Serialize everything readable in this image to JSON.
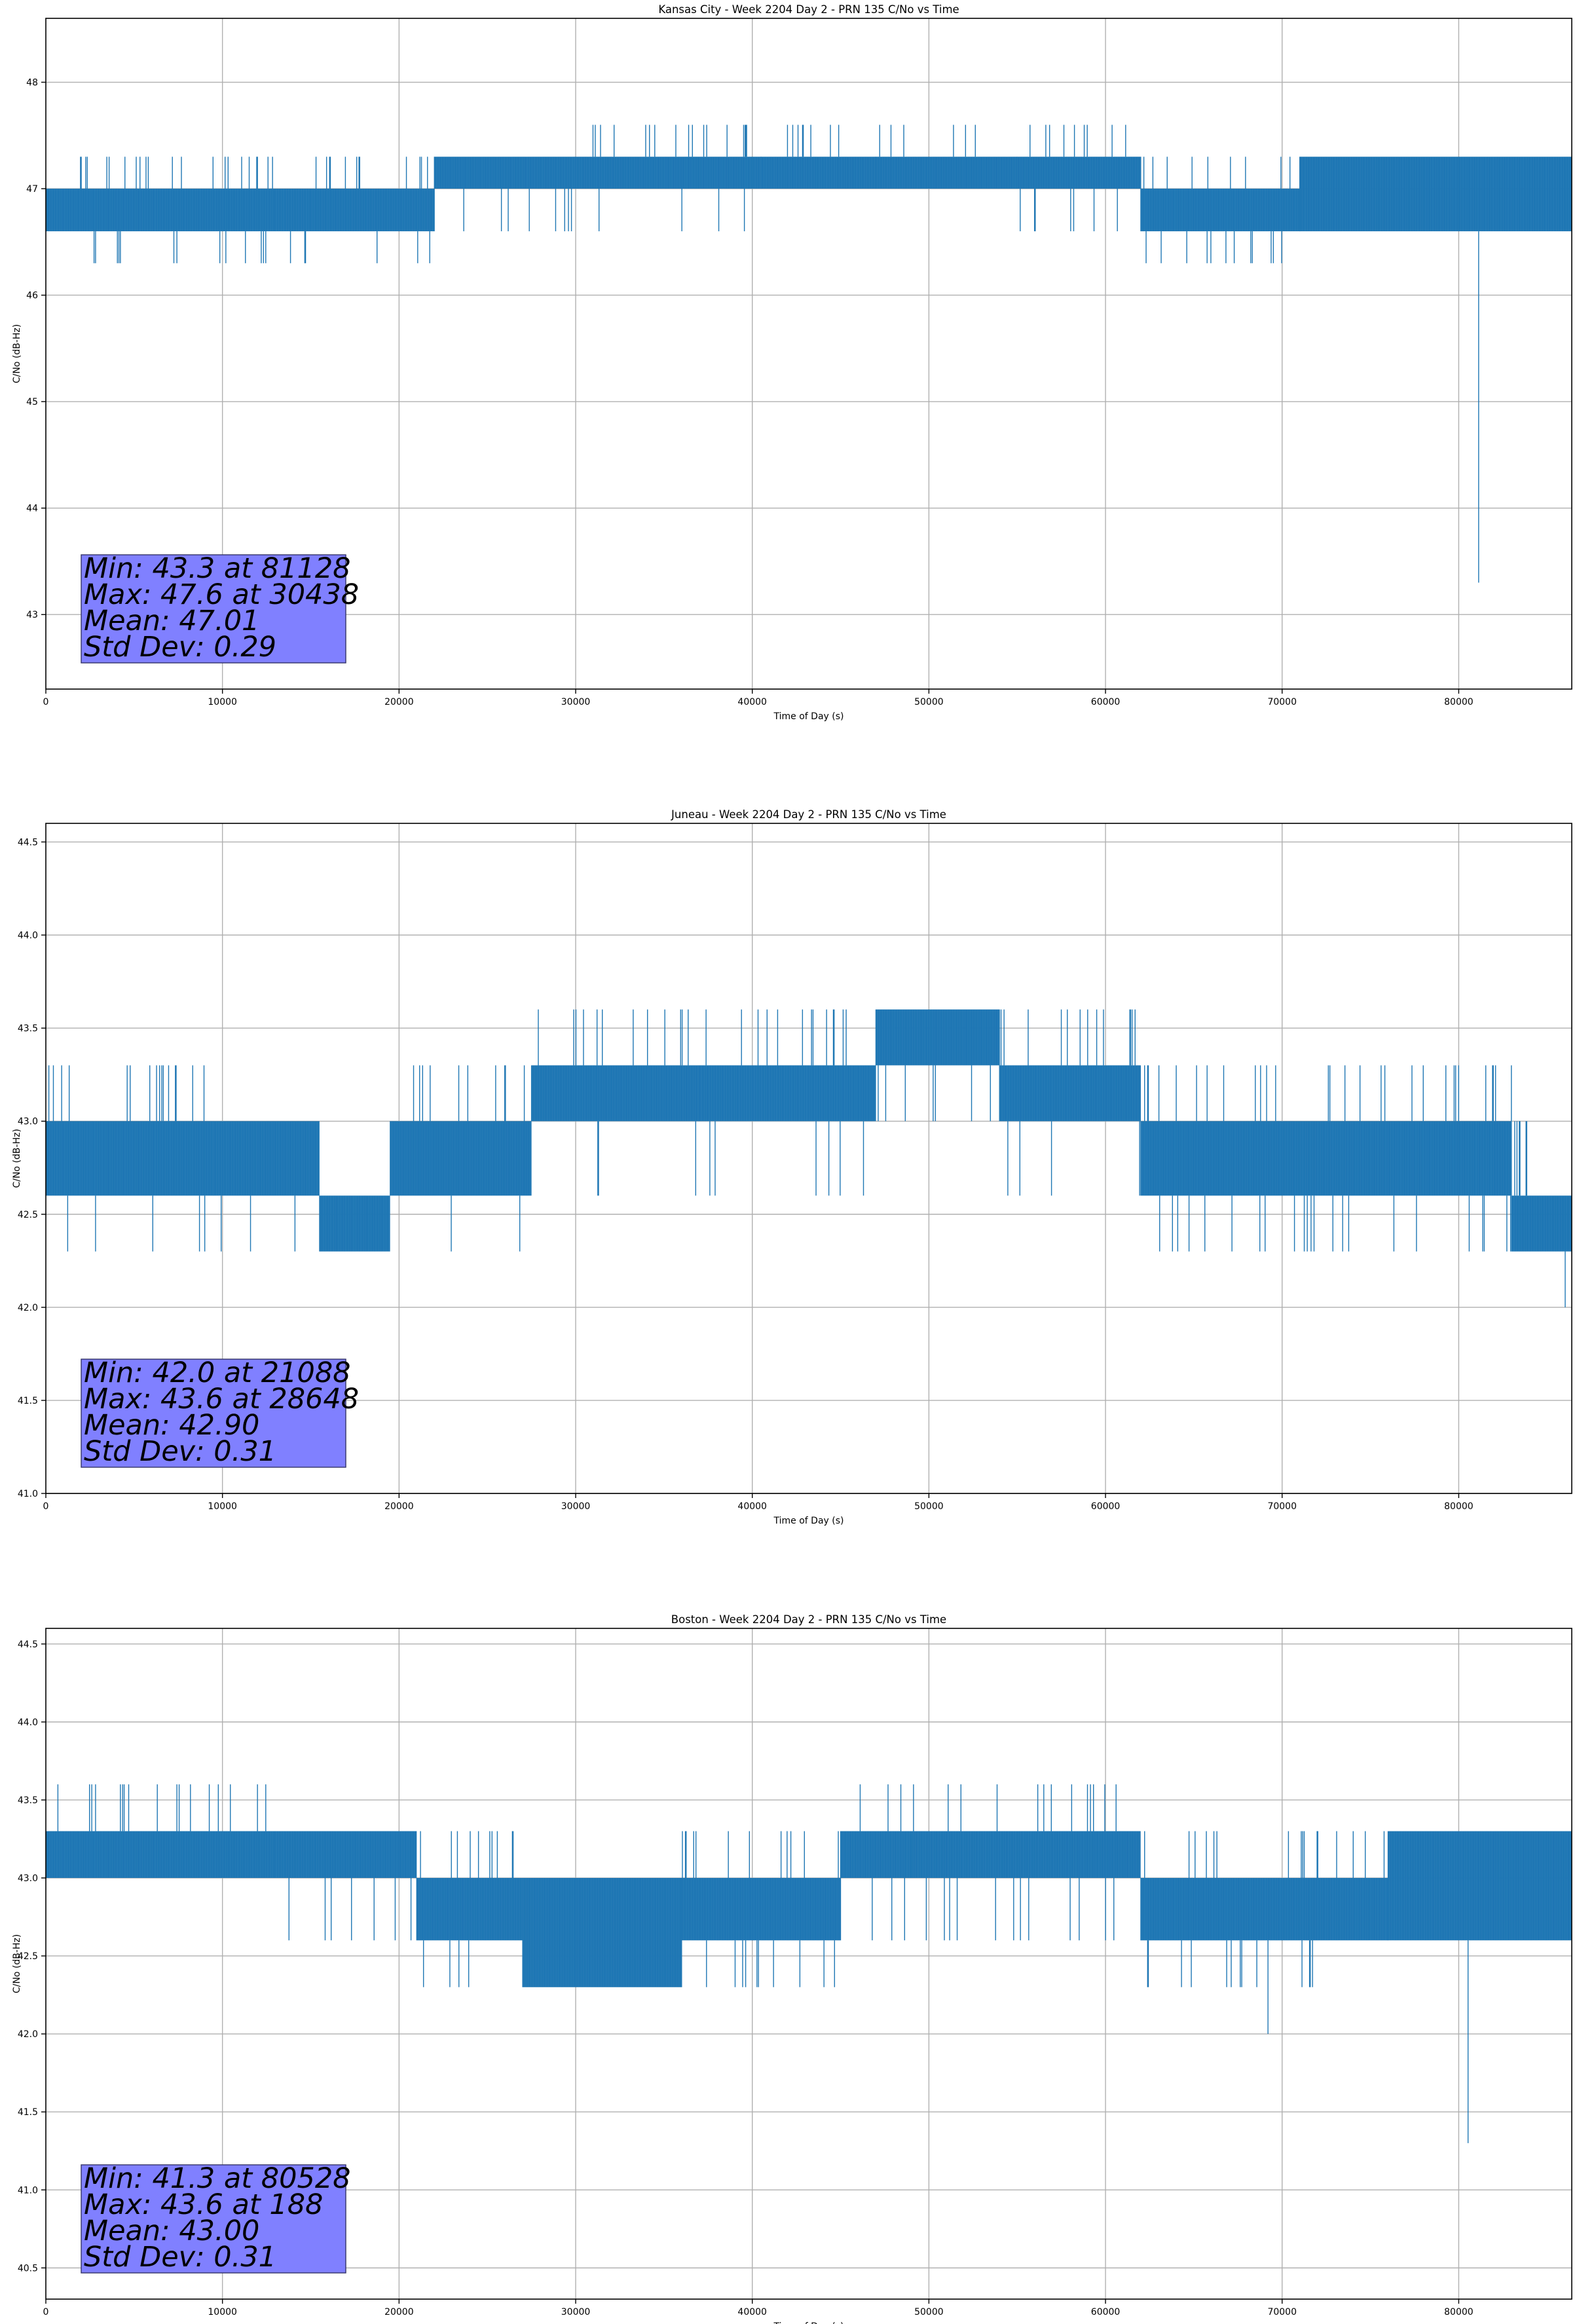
{
  "chart_data": [
    {
      "type": "line",
      "title": "Kansas City - Week 2204 Day 2 - PRN 135 C/No vs Time",
      "xlabel": "Time of Day (s)",
      "ylabel": "C/No (dB-Hz)",
      "xlim": [
        0,
        86400
      ],
      "ylim": [
        42.3,
        48.6
      ],
      "xticks": [
        0,
        10000,
        20000,
        30000,
        40000,
        50000,
        60000,
        70000,
        80000
      ],
      "yticks": [
        43,
        44,
        45,
        46,
        47,
        48
      ],
      "grid": true,
      "color": "#1f77b4",
      "stats": {
        "min_line": "Min: 43.3 at 81128",
        "max_line": "Max: 47.6 at 30438",
        "mean_line": "Mean: 47.01",
        "std_line": "Std Dev: 0.29"
      },
      "segments": [
        {
          "x": [
            0,
            13000
          ],
          "low": 46.6,
          "high": 47.0,
          "dips": 46.3,
          "spikes": 47.3
        },
        {
          "x": [
            13000,
            15000
          ],
          "low": 46.6,
          "high": 47.0,
          "dips": 46.3,
          "spikes": 47.0
        },
        {
          "x": [
            15000,
            22000
          ],
          "low": 46.6,
          "high": 47.0,
          "dips": 46.3,
          "spikes": 47.3
        },
        {
          "x": [
            22000,
            30000
          ],
          "low": 47.0,
          "high": 47.3,
          "dips": 46.6,
          "spikes": 47.3
        },
        {
          "x": [
            30000,
            40500
          ],
          "low": 47.0,
          "high": 47.3,
          "dips": 46.6,
          "spikes": 47.6
        },
        {
          "x": [
            40500,
            47000
          ],
          "low": 47.0,
          "high": 47.3,
          "dips": 47.0,
          "spikes": 47.6
        },
        {
          "x": [
            47000,
            55000
          ],
          "low": 47.0,
          "high": 47.3,
          "dips": 47.0,
          "spikes": 47.6
        },
        {
          "x": [
            55000,
            62000
          ],
          "low": 47.0,
          "high": 47.3,
          "dips": 46.6,
          "spikes": 47.6
        },
        {
          "x": [
            62000,
            71000
          ],
          "low": 46.6,
          "high": 47.0,
          "dips": 46.3,
          "spikes": 47.3
        },
        {
          "x": [
            71000,
            86400
          ],
          "low": 46.6,
          "high": 47.3,
          "dips": 46.6,
          "spikes": 47.3
        }
      ],
      "outliers": [
        {
          "x": 81128,
          "y": 43.3
        }
      ]
    },
    {
      "type": "line",
      "title": "Juneau - Week 2204 Day 2 - PRN 135 C/No vs Time",
      "xlabel": "Time of Day (s)",
      "ylabel": "C/No (dB-Hz)",
      "xlim": [
        0,
        86400
      ],
      "ylim": [
        41.0,
        44.6
      ],
      "xticks": [
        0,
        10000,
        20000,
        30000,
        40000,
        50000,
        60000,
        70000,
        80000
      ],
      "yticks": [
        41.0,
        41.5,
        42.0,
        42.5,
        43.0,
        43.5,
        44.0,
        44.5
      ],
      "grid": true,
      "color": "#1f77b4",
      "stats": {
        "min_line": "Min: 42.0 at 21088",
        "max_line": "Max: 43.6 at 28648",
        "mean_line": "Mean: 42.90",
        "std_line": "Std Dev: 0.31"
      },
      "segments": [
        {
          "x": [
            0,
            9500
          ],
          "low": 42.6,
          "high": 43.0,
          "dips": 42.3,
          "spikes": 43.3
        },
        {
          "x": [
            9500,
            15500
          ],
          "low": 42.6,
          "high": 43.0,
          "dips": 42.3,
          "spikes": 43.0
        },
        {
          "x": [
            15500,
            19500
          ],
          "low": 42.3,
          "high": 42.6,
          "dips": 42.3,
          "spikes": 42.6
        },
        {
          "x": [
            19500,
            27500
          ],
          "low": 42.6,
          "high": 43.0,
          "dips": 42.3,
          "spikes": 43.3
        },
        {
          "x": [
            27500,
            37000
          ],
          "low": 43.0,
          "high": 43.3,
          "dips": 42.6,
          "spikes": 43.6
        },
        {
          "x": [
            37000,
            47000
          ],
          "low": 43.0,
          "high": 43.3,
          "dips": 42.6,
          "spikes": 43.6
        },
        {
          "x": [
            47000,
            54000
          ],
          "low": 43.3,
          "high": 43.6,
          "dips": 43.0,
          "spikes": 43.6
        },
        {
          "x": [
            54000,
            62000
          ],
          "low": 43.0,
          "high": 43.3,
          "dips": 42.6,
          "spikes": 43.6
        },
        {
          "x": [
            62000,
            83000
          ],
          "low": 42.6,
          "high": 43.0,
          "dips": 42.3,
          "spikes": 43.3
        },
        {
          "x": [
            83000,
            86400
          ],
          "low": 42.3,
          "high": 42.6,
          "dips": 42.0,
          "spikes": 43.0
        }
      ],
      "outliers": []
    },
    {
      "type": "line",
      "title": "Boston - Week 2204 Day 2 - PRN 135 C/No vs Time",
      "xlabel": "Time of Day (s)",
      "ylabel": "C/No (dB-Hz)",
      "xlim": [
        0,
        86400
      ],
      "ylim": [
        40.3,
        44.6
      ],
      "xticks": [
        0,
        10000,
        20000,
        30000,
        40000,
        50000,
        60000,
        70000,
        80000
      ],
      "yticks": [
        40.5,
        41.0,
        41.5,
        42.0,
        42.5,
        43.0,
        43.5,
        44.0,
        44.5
      ],
      "grid": true,
      "color": "#1f77b4",
      "stats": {
        "min_line": "Min: 41.3 at 80528",
        "max_line": "Max: 43.6 at 188",
        "mean_line": "Mean: 43.00",
        "std_line": "Std Dev: 0.31"
      },
      "segments": [
        {
          "x": [
            0,
            13000
          ],
          "low": 43.0,
          "high": 43.3,
          "dips": 43.0,
          "spikes": 43.6
        },
        {
          "x": [
            13000,
            21000
          ],
          "low": 43.0,
          "high": 43.3,
          "dips": 42.6,
          "spikes": 43.3
        },
        {
          "x": [
            21000,
            27000
          ],
          "low": 42.6,
          "high": 43.0,
          "dips": 42.3,
          "spikes": 43.3
        },
        {
          "x": [
            27000,
            36000
          ],
          "low": 42.3,
          "high": 43.0,
          "dips": 42.3,
          "spikes": 43.0
        },
        {
          "x": [
            36000,
            45000
          ],
          "low": 42.6,
          "high": 43.0,
          "dips": 42.3,
          "spikes": 43.3
        },
        {
          "x": [
            45000,
            49000
          ],
          "low": 43.0,
          "high": 43.3,
          "dips": 42.6,
          "spikes": 43.6
        },
        {
          "x": [
            49000,
            62000
          ],
          "low": 43.0,
          "high": 43.3,
          "dips": 42.6,
          "spikes": 43.6
        },
        {
          "x": [
            62000,
            76000
          ],
          "low": 42.6,
          "high": 43.0,
          "dips": 42.3,
          "spikes": 43.3
        },
        {
          "x": [
            76000,
            86400
          ],
          "low": 42.6,
          "high": 43.3,
          "dips": 42.6,
          "spikes": 43.3
        }
      ],
      "outliers": [
        {
          "x": 69200,
          "y": 42.0
        },
        {
          "x": 80528,
          "y": 41.3
        }
      ]
    }
  ]
}
